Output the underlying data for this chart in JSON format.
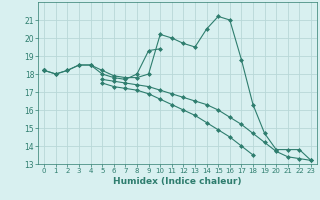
{
  "x": [
    0,
    1,
    2,
    3,
    4,
    5,
    6,
    7,
    8,
    9,
    10,
    11,
    12,
    13,
    14,
    15,
    16,
    17,
    18,
    19,
    20,
    21,
    22,
    23
  ],
  "line1": [
    18.2,
    18.0,
    18.2,
    18.5,
    18.5,
    18.2,
    17.9,
    17.8,
    17.8,
    18.0,
    20.2,
    20.0,
    19.7,
    19.5,
    20.5,
    21.2,
    21.0,
    18.8,
    16.3,
    14.7,
    13.8,
    13.8,
    13.8,
    13.2
  ],
  "line2": [
    18.2,
    18.0,
    18.2,
    18.5,
    18.5,
    18.0,
    17.8,
    17.7,
    18.0,
    19.3,
    19.4,
    null,
    null,
    null,
    null,
    null,
    null,
    null,
    null,
    null,
    null,
    null,
    null,
    null
  ],
  "line3": [
    18.2,
    null,
    null,
    null,
    null,
    17.7,
    17.6,
    17.5,
    17.4,
    17.3,
    17.1,
    16.9,
    16.7,
    16.5,
    16.3,
    16.0,
    15.6,
    15.2,
    14.7,
    14.2,
    13.7,
    13.4,
    13.3,
    13.2
  ],
  "line4": [
    18.2,
    null,
    null,
    null,
    null,
    17.5,
    17.3,
    17.2,
    17.1,
    16.9,
    16.6,
    16.3,
    16.0,
    15.7,
    15.3,
    14.9,
    14.5,
    14.0,
    13.5,
    null,
    null,
    null,
    null,
    null
  ],
  "color": "#2e7d6e",
  "bg_color": "#d8f0f0",
  "grid_color": "#b8d8d8",
  "xlabel": "Humidex (Indice chaleur)",
  "ylim": [
    13,
    22
  ],
  "xlim": [
    -0.5,
    23.5
  ],
  "yticks": [
    13,
    14,
    15,
    16,
    17,
    18,
    19,
    20,
    21
  ],
  "xticks": [
    0,
    1,
    2,
    3,
    4,
    5,
    6,
    7,
    8,
    9,
    10,
    11,
    12,
    13,
    14,
    15,
    16,
    17,
    18,
    19,
    20,
    21,
    22,
    23
  ]
}
